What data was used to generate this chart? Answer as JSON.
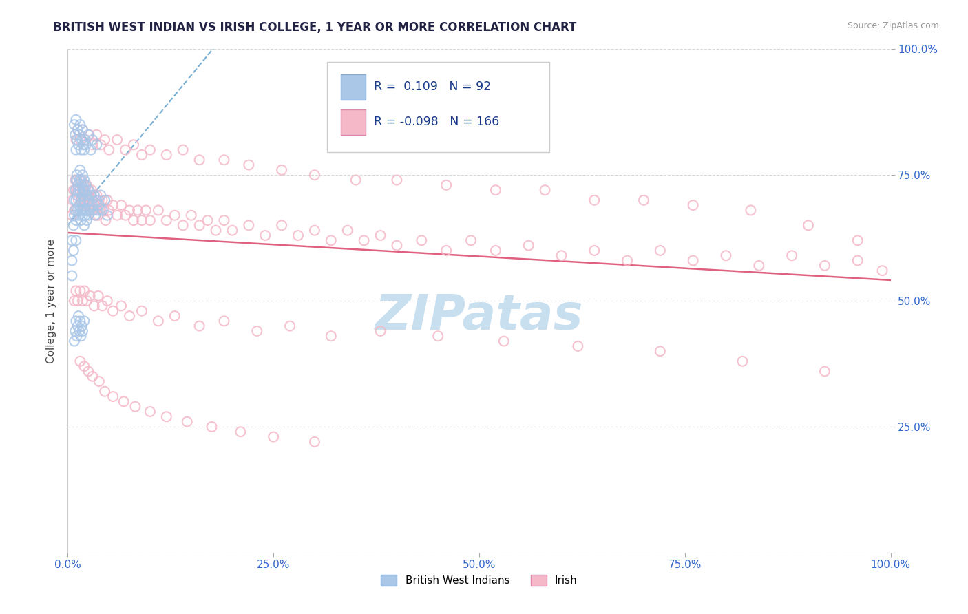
{
  "title": "BRITISH WEST INDIAN VS IRISH COLLEGE, 1 YEAR OR MORE CORRELATION CHART",
  "source_text": "Source: ZipAtlas.com",
  "ylabel": "College, 1 year or more",
  "legend_label1": "British West Indians",
  "legend_label2": "Irish",
  "r1": 0.109,
  "n1": 92,
  "r2": -0.098,
  "n2": 166,
  "color1": "#aac7e8",
  "color2": "#f4b8c8",
  "trendline1_color": "#7aafd4",
  "trendline2_color": "#e06080",
  "watermark_color": "#c8dff0",
  "tick_color": "#3366cc",
  "background_color": "#ffffff",
  "grid_color": "#d8d8d8",
  "xlim": [
    0.0,
    1.0
  ],
  "ylim": [
    0.0,
    1.0
  ],
  "xticks": [
    0.0,
    0.25,
    0.5,
    0.75,
    1.0
  ],
  "yticks": [
    0.0,
    0.25,
    0.5,
    0.75,
    1.0
  ],
  "xticklabels": [
    "0.0%",
    "25.0%",
    "50.0%",
    "75.0%",
    "100.0%"
  ],
  "right_yticklabels": [
    "",
    "25.0%",
    "50.0%",
    "75.0%",
    "100.0%"
  ],
  "bwi_x": [
    0.005,
    0.005,
    0.005,
    0.007,
    0.007,
    0.008,
    0.008,
    0.009,
    0.009,
    0.01,
    0.01,
    0.01,
    0.01,
    0.011,
    0.011,
    0.012,
    0.012,
    0.013,
    0.013,
    0.014,
    0.014,
    0.015,
    0.015,
    0.015,
    0.016,
    0.016,
    0.016,
    0.017,
    0.017,
    0.018,
    0.018,
    0.018,
    0.019,
    0.019,
    0.02,
    0.02,
    0.02,
    0.021,
    0.021,
    0.022,
    0.022,
    0.023,
    0.023,
    0.024,
    0.025,
    0.025,
    0.026,
    0.027,
    0.028,
    0.03,
    0.031,
    0.032,
    0.033,
    0.035,
    0.036,
    0.038,
    0.04,
    0.042,
    0.045,
    0.048,
    0.008,
    0.009,
    0.01,
    0.01,
    0.011,
    0.012,
    0.013,
    0.014,
    0.015,
    0.016,
    0.017,
    0.018,
    0.019,
    0.02,
    0.021,
    0.022,
    0.025,
    0.028,
    0.03,
    0.035,
    0.008,
    0.009,
    0.01,
    0.011,
    0.012,
    0.013,
    0.014,
    0.015,
    0.016,
    0.017,
    0.018,
    0.02
  ],
  "bwi_y": [
    0.58,
    0.62,
    0.55,
    0.65,
    0.6,
    0.7,
    0.67,
    0.72,
    0.68,
    0.74,
    0.7,
    0.66,
    0.62,
    0.75,
    0.71,
    0.73,
    0.68,
    0.72,
    0.67,
    0.74,
    0.69,
    0.76,
    0.72,
    0.68,
    0.74,
    0.7,
    0.66,
    0.73,
    0.68,
    0.75,
    0.71,
    0.67,
    0.72,
    0.68,
    0.74,
    0.7,
    0.65,
    0.72,
    0.67,
    0.73,
    0.68,
    0.71,
    0.66,
    0.7,
    0.72,
    0.67,
    0.7,
    0.68,
    0.71,
    0.69,
    0.68,
    0.71,
    0.67,
    0.7,
    0.68,
    0.69,
    0.71,
    0.68,
    0.7,
    0.67,
    0.85,
    0.83,
    0.86,
    0.8,
    0.82,
    0.84,
    0.81,
    0.83,
    0.85,
    0.8,
    0.82,
    0.84,
    0.81,
    0.8,
    0.82,
    0.81,
    0.83,
    0.8,
    0.82,
    0.81,
    0.42,
    0.44,
    0.46,
    0.43,
    0.45,
    0.47,
    0.44,
    0.46,
    0.43,
    0.45,
    0.44,
    0.46
  ],
  "irish_x": [
    0.005,
    0.006,
    0.007,
    0.008,
    0.009,
    0.01,
    0.01,
    0.011,
    0.012,
    0.013,
    0.014,
    0.015,
    0.016,
    0.017,
    0.018,
    0.019,
    0.02,
    0.021,
    0.022,
    0.023,
    0.024,
    0.025,
    0.026,
    0.027,
    0.028,
    0.029,
    0.03,
    0.031,
    0.032,
    0.033,
    0.034,
    0.035,
    0.036,
    0.037,
    0.038,
    0.04,
    0.042,
    0.044,
    0.046,
    0.048,
    0.05,
    0.055,
    0.06,
    0.065,
    0.07,
    0.075,
    0.08,
    0.085,
    0.09,
    0.095,
    0.1,
    0.11,
    0.12,
    0.13,
    0.14,
    0.15,
    0.16,
    0.17,
    0.18,
    0.19,
    0.2,
    0.22,
    0.24,
    0.26,
    0.28,
    0.3,
    0.32,
    0.34,
    0.36,
    0.38,
    0.4,
    0.43,
    0.46,
    0.49,
    0.52,
    0.56,
    0.6,
    0.64,
    0.68,
    0.72,
    0.76,
    0.8,
    0.84,
    0.88,
    0.92,
    0.96,
    0.99,
    0.01,
    0.012,
    0.015,
    0.018,
    0.022,
    0.026,
    0.03,
    0.035,
    0.04,
    0.045,
    0.05,
    0.06,
    0.07,
    0.08,
    0.09,
    0.1,
    0.12,
    0.14,
    0.16,
    0.19,
    0.22,
    0.26,
    0.3,
    0.35,
    0.4,
    0.46,
    0.52,
    0.58,
    0.64,
    0.7,
    0.76,
    0.83,
    0.9,
    0.96,
    0.008,
    0.01,
    0.012,
    0.015,
    0.018,
    0.02,
    0.023,
    0.027,
    0.032,
    0.037,
    0.042,
    0.048,
    0.055,
    0.065,
    0.075,
    0.09,
    0.11,
    0.13,
    0.16,
    0.19,
    0.23,
    0.27,
    0.32,
    0.38,
    0.45,
    0.53,
    0.62,
    0.72,
    0.82,
    0.92,
    0.015,
    0.02,
    0.025,
    0.03,
    0.038,
    0.045,
    0.055,
    0.068,
    0.082,
    0.1,
    0.12,
    0.145,
    0.175,
    0.21,
    0.25,
    0.3
  ],
  "irish_y": [
    0.67,
    0.7,
    0.72,
    0.68,
    0.74,
    0.72,
    0.68,
    0.74,
    0.72,
    0.7,
    0.74,
    0.72,
    0.7,
    0.74,
    0.72,
    0.7,
    0.73,
    0.71,
    0.69,
    0.73,
    0.71,
    0.69,
    0.72,
    0.7,
    0.68,
    0.72,
    0.7,
    0.68,
    0.71,
    0.69,
    0.67,
    0.71,
    0.69,
    0.67,
    0.7,
    0.68,
    0.7,
    0.68,
    0.66,
    0.7,
    0.68,
    0.69,
    0.67,
    0.69,
    0.67,
    0.68,
    0.66,
    0.68,
    0.66,
    0.68,
    0.66,
    0.68,
    0.66,
    0.67,
    0.65,
    0.67,
    0.65,
    0.66,
    0.64,
    0.66,
    0.64,
    0.65,
    0.63,
    0.65,
    0.63,
    0.64,
    0.62,
    0.64,
    0.62,
    0.63,
    0.61,
    0.62,
    0.6,
    0.62,
    0.6,
    0.61,
    0.59,
    0.6,
    0.58,
    0.6,
    0.58,
    0.59,
    0.57,
    0.59,
    0.57,
    0.58,
    0.56,
    0.82,
    0.84,
    0.82,
    0.84,
    0.82,
    0.83,
    0.81,
    0.83,
    0.81,
    0.82,
    0.8,
    0.82,
    0.8,
    0.81,
    0.79,
    0.8,
    0.79,
    0.8,
    0.78,
    0.78,
    0.77,
    0.76,
    0.75,
    0.74,
    0.74,
    0.73,
    0.72,
    0.72,
    0.7,
    0.7,
    0.69,
    0.68,
    0.65,
    0.62,
    0.5,
    0.52,
    0.5,
    0.52,
    0.5,
    0.52,
    0.5,
    0.51,
    0.49,
    0.51,
    0.49,
    0.5,
    0.48,
    0.49,
    0.47,
    0.48,
    0.46,
    0.47,
    0.45,
    0.46,
    0.44,
    0.45,
    0.43,
    0.44,
    0.43,
    0.42,
    0.41,
    0.4,
    0.38,
    0.36,
    0.38,
    0.37,
    0.36,
    0.35,
    0.34,
    0.32,
    0.31,
    0.3,
    0.29,
    0.28,
    0.27,
    0.26,
    0.25,
    0.24,
    0.23,
    0.22
  ]
}
